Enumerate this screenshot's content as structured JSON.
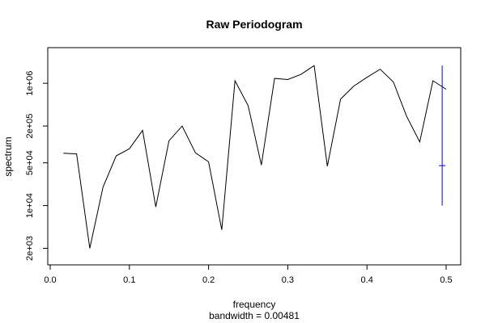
{
  "chart_data": {
    "type": "line",
    "title": "Raw Periodogram",
    "xlabel": "frequency",
    "sublabel": "bandwidth = 0.00481",
    "ylabel": "spectrum",
    "xlim": [
      0,
      0.5
    ],
    "ylim": [
      1500,
      3000000
    ],
    "y_scale": "log",
    "x_ticks": [
      0.0,
      0.1,
      0.2,
      0.3,
      0.4,
      0.5
    ],
    "x_tick_labels": [
      "0.0",
      "0.1",
      "0.2",
      "0.3",
      "0.4",
      "0.5"
    ],
    "y_ticks": [
      2000,
      10000,
      50000,
      200000,
      1000000
    ],
    "y_tick_labels": [
      "2e+03",
      "1e+04",
      "5e+04",
      "2e+05",
      "1e+06"
    ],
    "grid": false,
    "series": [
      {
        "color": "#000000",
        "x": [
          0.0167,
          0.0333,
          0.05,
          0.0667,
          0.0833,
          0.1,
          0.1167,
          0.1333,
          0.15,
          0.1667,
          0.1833,
          0.2,
          0.2167,
          0.2333,
          0.25,
          0.2667,
          0.2833,
          0.3,
          0.3167,
          0.3333,
          0.35,
          0.3667,
          0.3833,
          0.4,
          0.4167,
          0.4333,
          0.45,
          0.4667,
          0.4833,
          0.5
        ],
        "values": [
          72000,
          70000,
          2000,
          20000,
          65000,
          85000,
          170000,
          9500,
          115000,
          200000,
          73000,
          52000,
          4000,
          1100000,
          430000,
          46000,
          1200000,
          1150000,
          1400000,
          1950000,
          44000,
          550000,
          900000,
          1250000,
          1700000,
          1050000,
          290000,
          110000,
          1100000,
          800000
        ]
      }
    ],
    "ci_bar": {
      "color": "#0000ff",
      "x": 0.495,
      "center": 45000,
      "lower": 10000,
      "upper": 1950000
    }
  }
}
